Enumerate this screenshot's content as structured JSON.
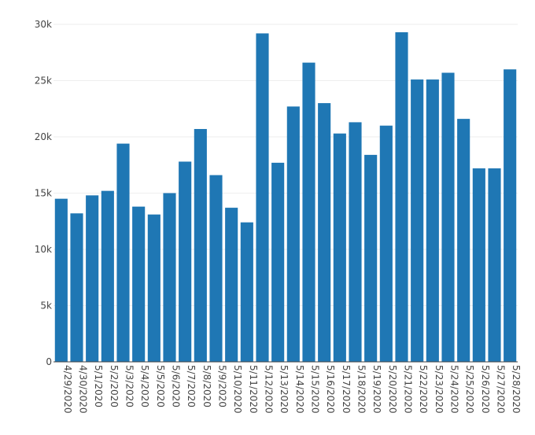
{
  "chart_data": {
    "type": "bar",
    "title": "",
    "xlabel": "",
    "ylabel": "",
    "ylim": [
      0,
      30000
    ],
    "y_ticks": [
      {
        "value": 0,
        "label": "0"
      },
      {
        "value": 5000,
        "label": "5k"
      },
      {
        "value": 10000,
        "label": "10k"
      },
      {
        "value": 15000,
        "label": "15k"
      },
      {
        "value": 20000,
        "label": "20k"
      },
      {
        "value": 25000,
        "label": "25k"
      },
      {
        "value": 30000,
        "label": "30k"
      }
    ],
    "grid": true,
    "legend": "none",
    "bar_color": "#1f77b4",
    "categories": [
      "4/29/2020",
      "4/30/2020",
      "5/1/2020",
      "5/2/2020",
      "5/3/2020",
      "5/4/2020",
      "5/5/2020",
      "5/6/2020",
      "5/7/2020",
      "5/8/2020",
      "5/9/2020",
      "5/10/2020",
      "5/11/2020",
      "5/12/2020",
      "5/13/2020",
      "5/14/2020",
      "5/15/2020",
      "5/16/2020",
      "5/17/2020",
      "5/18/2020",
      "5/19/2020",
      "5/20/2020",
      "5/21/2020",
      "5/22/2020",
      "5/23/2020",
      "5/24/2020",
      "5/25/2020",
      "5/26/2020",
      "5/27/2020",
      "5/28/2020"
    ],
    "values": [
      14500,
      13200,
      14800,
      15200,
      19400,
      13800,
      13100,
      15000,
      17800,
      20700,
      16600,
      13700,
      12400,
      29200,
      17700,
      22700,
      26600,
      23000,
      20300,
      21300,
      18400,
      21000,
      29300,
      25100,
      25100,
      25700,
      21600,
      17200,
      17200,
      26000
    ]
  }
}
